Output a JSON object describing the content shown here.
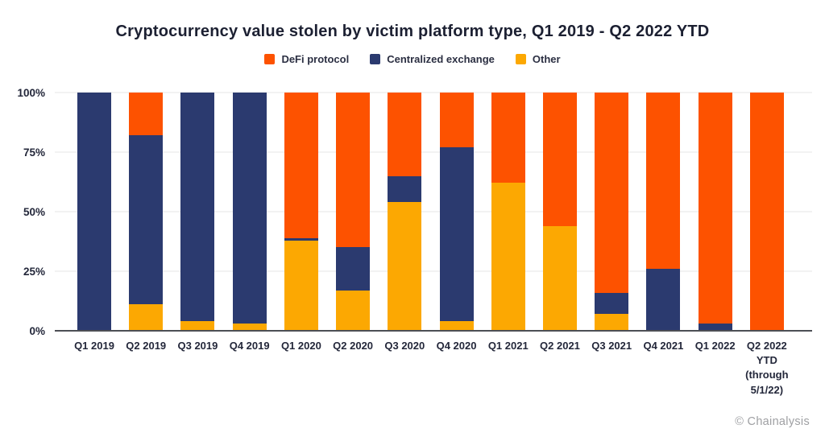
{
  "title": "Cryptocurrency value stolen by victim platform type, Q1 2019 - Q2 2022 YTD",
  "footer": {
    "credit": "© Chainalysis"
  },
  "chart_data": {
    "type": "bar",
    "stacked": true,
    "unit": "percent",
    "title": "Cryptocurrency value stolen by victim platform type, Q1 2019 - Q2 2022 YTD",
    "xlabel": "",
    "ylabel": "",
    "ylim": [
      0,
      100
    ],
    "yticks": [
      "0%",
      "25%",
      "50%",
      "75%",
      "100%"
    ],
    "grid": "horizontal",
    "legend_position": "top",
    "categories": [
      "Q1 2019",
      "Q2 2019",
      "Q3 2019",
      "Q4 2019",
      "Q1 2020",
      "Q2 2020",
      "Q3 2020",
      "Q4 2020",
      "Q1 2021",
      "Q2 2021",
      "Q3 2021",
      "Q4 2021",
      "Q1 2022",
      "Q2 2022\nYTD\n(through\n5/1/22)"
    ],
    "series": [
      {
        "name": "DeFi protocol",
        "color": "#FD5200",
        "values": [
          0,
          18,
          0,
          0,
          61,
          65,
          35,
          23,
          38,
          56,
          84,
          74,
          97,
          100
        ]
      },
      {
        "name": "Centralized exchange",
        "color": "#2B3A6F",
        "values": [
          100,
          71,
          96,
          97,
          1,
          18,
          11,
          73,
          0,
          0,
          9,
          26,
          3,
          0
        ]
      },
      {
        "name": "Other",
        "color": "#FCA802",
        "values": [
          0,
          11,
          4,
          3,
          38,
          17,
          54,
          4,
          62,
          44,
          7,
          0,
          0,
          0
        ]
      }
    ],
    "stack_order_bottom_to_top": [
      "Other",
      "Centralized exchange",
      "DeFi protocol"
    ]
  }
}
